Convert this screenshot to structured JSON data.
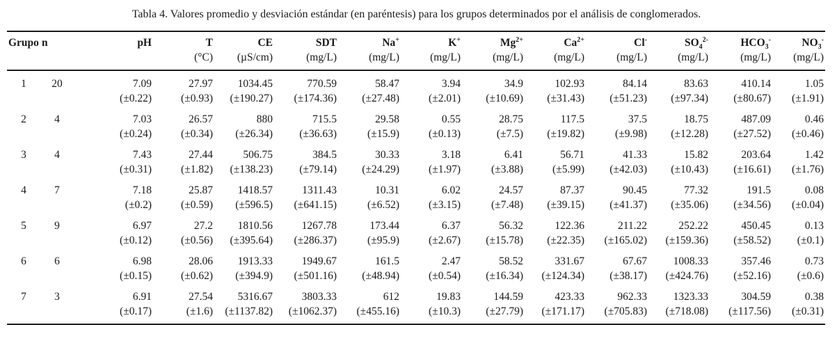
{
  "caption": "Tabla 4. Valores promedio y desviación estándar (en paréntesis) para los grupos determinados por el análisis de conglomerados.",
  "headers": {
    "group": "Grupo",
    "n": "n",
    "ph": "pH",
    "t": "T",
    "t_unit": "(°C)",
    "ce": "CE",
    "ce_unit": "(µS/cm)",
    "sdt": "SDT",
    "sdt_unit": "(mg/L)",
    "na": "Na",
    "na_sup": "+",
    "na_unit": "(mg/L)",
    "k": "K",
    "k_sup": "+",
    "k_unit": "(mg/L)",
    "mg": "Mg",
    "mg_sup": "2+",
    "mg_unit": "(mg/L)",
    "ca": "Ca",
    "ca_sup": "2+",
    "ca_unit": "(mg/L)",
    "cl": "Cl",
    "cl_sup": "-",
    "cl_unit": "(mg/L)",
    "so4": "SO",
    "so4_sub": "4",
    "so4_sup": "2-",
    "so4_unit": "(mg/L)",
    "hco3": "HCO",
    "hco3_sub": "3",
    "hco3_sup": "-",
    "hco3_unit": "(mg/L)",
    "no3": "NO",
    "no3_sub": "3",
    "no3_sup": "-",
    "no3_unit": "(mg/L)"
  },
  "rows": [
    {
      "group": "1",
      "n": "20",
      "mean": [
        "7.09",
        "27.97",
        "1034.45",
        "770.59",
        "58.47",
        "3.94",
        "34.9",
        "102.93",
        "84.14",
        "83.63",
        "410.14",
        "1.05"
      ],
      "sd": [
        "(±0.22)",
        "(±0.93)",
        "(±190.27)",
        "(±174.36)",
        "(±27.48)",
        "(±2.01)",
        "(±10.69)",
        "(±31.43)",
        "(±51.23)",
        "(±97.34)",
        "(±80.67)",
        "(±1.91)"
      ]
    },
    {
      "group": "2",
      "n": "4",
      "mean": [
        "7.03",
        "26.57",
        "880",
        "715.5",
        "29.58",
        "0.55",
        "28.75",
        "117.5",
        "37.5",
        "18.75",
        "487.09",
        "0.46"
      ],
      "sd": [
        "(±0.24)",
        "(±0.34)",
        "(±26.34)",
        "(±36.63)",
        "(±15.9)",
        "(±0.13)",
        "(±7.5)",
        "(±19.82)",
        "(±9.98)",
        "(±12.28)",
        "(±27.52)",
        "(±0.46)"
      ]
    },
    {
      "group": "3",
      "n": "4",
      "mean": [
        "7.43",
        "27.44",
        "506.75",
        "384.5",
        "30.33",
        "3.18",
        "6.41",
        "56.71",
        "41.33",
        "15.82",
        "203.64",
        "1.42"
      ],
      "sd": [
        "(±0.31)",
        "(±1.82)",
        "(±138.23)",
        "(±79.14)",
        "(±24.29)",
        "(±1.97)",
        "(±3.88)",
        "(±5.99)",
        "(±42.03)",
        "(±10.43)",
        "(±16.61)",
        "(±1.76)"
      ]
    },
    {
      "group": "4",
      "n": "7",
      "mean": [
        "7.18",
        "25.87",
        "1418.57",
        "1311.43",
        "10.31",
        "6.02",
        "24.57",
        "87.37",
        "90.45",
        "77.32",
        "191.5",
        "0.08"
      ],
      "sd": [
        "(±0.2)",
        "(±0.59)",
        "(±596.5)",
        "(±641.15)",
        "(±6.52)",
        "(±3.15)",
        "(±7.48)",
        "(±39.15)",
        "(±41.37)",
        "(±35.06)",
        "(±34.56)",
        "(±0.04)"
      ]
    },
    {
      "group": "5",
      "n": "9",
      "mean": [
        "6.97",
        "27.2",
        "1810.56",
        "1267.78",
        "173.44",
        "6.37",
        "56.32",
        "122.36",
        "211.22",
        "252.22",
        "450.45",
        "0.13"
      ],
      "sd": [
        "(±0.12)",
        "(±0.56)",
        "(±395.64)",
        "(±286.37)",
        "(±95.9)",
        "(±2.67)",
        "(±15.78)",
        "(±22.35)",
        "(±165.02)",
        "(±159.36)",
        "(±58.52)",
        "(±0.1)"
      ]
    },
    {
      "group": "6",
      "n": "6",
      "mean": [
        "6.98",
        "28.06",
        "1913.33",
        "1949.67",
        "161.5",
        "2.47",
        "58.52",
        "331.67",
        "67.67",
        "1008.33",
        "357.46",
        "0.73"
      ],
      "sd": [
        "(±0.15)",
        "(±0.62)",
        "(±394.9)",
        "(±501.16)",
        "(±48.94)",
        "(±0.54)",
        "(±16.34)",
        "(±124.34)",
        "(±38.17)",
        "(±424.76)",
        "(±52.16)",
        "(±0.6)"
      ]
    },
    {
      "group": "7",
      "n": "3",
      "mean": [
        "6.91",
        "27.54",
        "5316.67",
        "3803.33",
        "612",
        "19.83",
        "144.59",
        "423.33",
        "962.33",
        "1323.33",
        "304.59",
        "0.38"
      ],
      "sd": [
        "(±0.17)",
        "(±1.6)",
        "(±1137.82)",
        "(±1062.37)",
        "(±455.16)",
        "(±10.3)",
        "(±27.79)",
        "(±171.17)",
        "(±705.83)",
        "(±718.08)",
        "(±117.56)",
        "(±0.31)"
      ]
    }
  ]
}
